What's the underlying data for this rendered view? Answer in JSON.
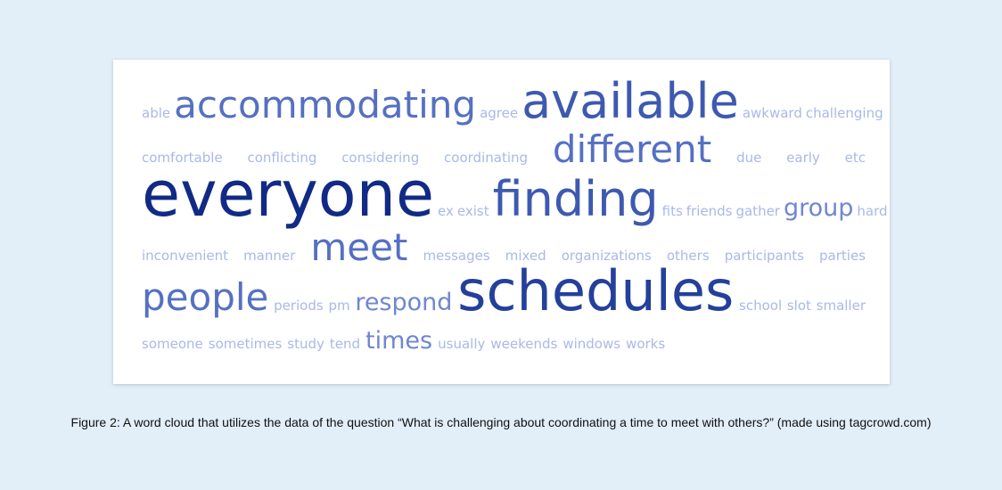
{
  "colors": {
    "background": "#e2eef8",
    "card": "#ffffff",
    "level1": "#a9b9e6",
    "level2": "#8ea3de",
    "level3": "#6f86d1",
    "level4": "#5570c2",
    "level5": "#3d59b0",
    "level6": "#24409b",
    "level7": "#112a86"
  },
  "word_cloud": {
    "words": [
      {
        "text": "able",
        "weight": 1
      },
      {
        "text": "accommodating",
        "weight": 4
      },
      {
        "text": "agree",
        "weight": 1
      },
      {
        "text": "available",
        "weight": 5
      },
      {
        "text": "awkward",
        "weight": 1
      },
      {
        "text": "challenging",
        "weight": 1
      },
      {
        "text": "comfortable",
        "weight": 1
      },
      {
        "text": "conflicting",
        "weight": 1
      },
      {
        "text": "considering",
        "weight": 1
      },
      {
        "text": "coordinating",
        "weight": 1
      },
      {
        "text": "different",
        "weight": 4
      },
      {
        "text": "due",
        "weight": 1
      },
      {
        "text": "early",
        "weight": 1
      },
      {
        "text": "etc",
        "weight": 1
      },
      {
        "text": "everyone",
        "weight": 7
      },
      {
        "text": "ex",
        "weight": 1
      },
      {
        "text": "exist",
        "weight": 1
      },
      {
        "text": "finding",
        "weight": 5
      },
      {
        "text": "fits",
        "weight": 1
      },
      {
        "text": "friends",
        "weight": 1
      },
      {
        "text": "gather",
        "weight": 1
      },
      {
        "text": "group",
        "weight": 3
      },
      {
        "text": "hard",
        "weight": 1
      },
      {
        "text": "inconvenient",
        "weight": 1
      },
      {
        "text": "manner",
        "weight": 1
      },
      {
        "text": "meet",
        "weight": 4
      },
      {
        "text": "messages",
        "weight": 1
      },
      {
        "text": "mixed",
        "weight": 1
      },
      {
        "text": "organizations",
        "weight": 1
      },
      {
        "text": "others",
        "weight": 1
      },
      {
        "text": "participants",
        "weight": 1
      },
      {
        "text": "parties",
        "weight": 1
      },
      {
        "text": "people",
        "weight": 4
      },
      {
        "text": "periods",
        "weight": 1
      },
      {
        "text": "pm",
        "weight": 1
      },
      {
        "text": "respond",
        "weight": 3
      },
      {
        "text": "schedules",
        "weight": 6
      },
      {
        "text": "school",
        "weight": 1
      },
      {
        "text": "slot",
        "weight": 1
      },
      {
        "text": "smaller",
        "weight": 1
      },
      {
        "text": "someone",
        "weight": 1
      },
      {
        "text": "sometimes",
        "weight": 1
      },
      {
        "text": "study",
        "weight": 1
      },
      {
        "text": "tend",
        "weight": 1
      },
      {
        "text": "times",
        "weight": 3
      },
      {
        "text": "usually",
        "weight": 1
      },
      {
        "text": "weekends",
        "weight": 1
      },
      {
        "text": "windows",
        "weight": 1
      },
      {
        "text": "works",
        "weight": 1
      }
    ]
  },
  "caption": "Figure 2: A word cloud that utilizes the data of the question “What is challenging about coordinating a time to meet with others?” (made using tagcrowd.com)"
}
